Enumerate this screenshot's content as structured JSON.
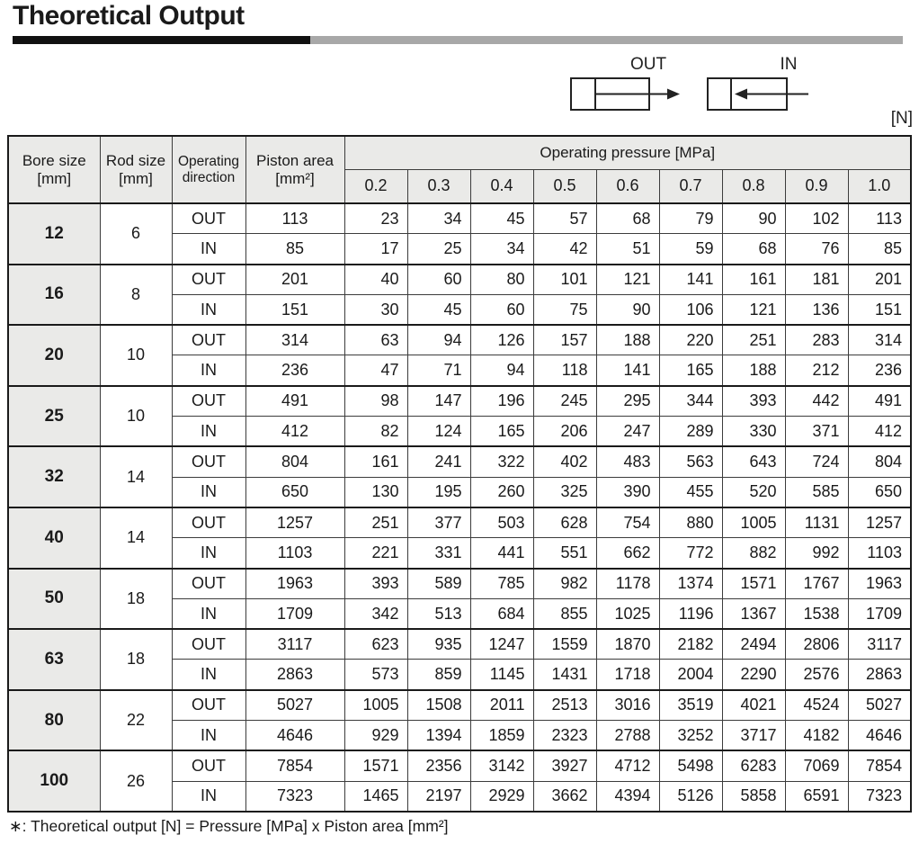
{
  "page": {
    "title": "Theoretical Output",
    "unit_label": "[N]",
    "footnote": "∗: Theoretical output [N] = Pressure [MPa] x Piston area [mm²]"
  },
  "colors": {
    "title_bar_black": "#111111",
    "title_bar_gray": "#a8a8a8",
    "header_bg": "#eaeae8"
  },
  "diagram": {
    "out_label": "OUT",
    "in_label": "IN"
  },
  "table": {
    "headers": {
      "bore": "Bore size",
      "bore_unit": "[mm]",
      "rod": "Rod size",
      "rod_unit": "[mm]",
      "direction_line1": "Operating",
      "direction_line2": "direction",
      "piston": "Piston area",
      "piston_unit": "[mm²]",
      "pressure_span": "Operating pressure [MPa]",
      "pressure_values": [
        "0.2",
        "0.3",
        "0.4",
        "0.5",
        "0.6",
        "0.7",
        "0.8",
        "0.9",
        "1.0"
      ]
    },
    "groups": [
      {
        "bore": "12",
        "rod": "6",
        "rows": [
          {
            "direction": "OUT",
            "piston_area": "113",
            "outputs": [
              "23",
              "34",
              "45",
              "57",
              "68",
              "79",
              "90",
              "102",
              "113"
            ]
          },
          {
            "direction": "IN",
            "piston_area": "85",
            "outputs": [
              "17",
              "25",
              "34",
              "42",
              "51",
              "59",
              "68",
              "76",
              "85"
            ]
          }
        ]
      },
      {
        "bore": "16",
        "rod": "8",
        "rows": [
          {
            "direction": "OUT",
            "piston_area": "201",
            "outputs": [
              "40",
              "60",
              "80",
              "101",
              "121",
              "141",
              "161",
              "181",
              "201"
            ]
          },
          {
            "direction": "IN",
            "piston_area": "151",
            "outputs": [
              "30",
              "45",
              "60",
              "75",
              "90",
              "106",
              "121",
              "136",
              "151"
            ]
          }
        ]
      },
      {
        "bore": "20",
        "rod": "10",
        "rows": [
          {
            "direction": "OUT",
            "piston_area": "314",
            "outputs": [
              "63",
              "94",
              "126",
              "157",
              "188",
              "220",
              "251",
              "283",
              "314"
            ]
          },
          {
            "direction": "IN",
            "piston_area": "236",
            "outputs": [
              "47",
              "71",
              "94",
              "118",
              "141",
              "165",
              "188",
              "212",
              "236"
            ]
          }
        ]
      },
      {
        "bore": "25",
        "rod": "10",
        "rows": [
          {
            "direction": "OUT",
            "piston_area": "491",
            "outputs": [
              "98",
              "147",
              "196",
              "245",
              "295",
              "344",
              "393",
              "442",
              "491"
            ]
          },
          {
            "direction": "IN",
            "piston_area": "412",
            "outputs": [
              "82",
              "124",
              "165",
              "206",
              "247",
              "289",
              "330",
              "371",
              "412"
            ]
          }
        ]
      },
      {
        "bore": "32",
        "rod": "14",
        "rows": [
          {
            "direction": "OUT",
            "piston_area": "804",
            "outputs": [
              "161",
              "241",
              "322",
              "402",
              "483",
              "563",
              "643",
              "724",
              "804"
            ]
          },
          {
            "direction": "IN",
            "piston_area": "650",
            "outputs": [
              "130",
              "195",
              "260",
              "325",
              "390",
              "455",
              "520",
              "585",
              "650"
            ]
          }
        ]
      },
      {
        "bore": "40",
        "rod": "14",
        "rows": [
          {
            "direction": "OUT",
            "piston_area": "1257",
            "outputs": [
              "251",
              "377",
              "503",
              "628",
              "754",
              "880",
              "1005",
              "1131",
              "1257"
            ]
          },
          {
            "direction": "IN",
            "piston_area": "1103",
            "outputs": [
              "221",
              "331",
              "441",
              "551",
              "662",
              "772",
              "882",
              "992",
              "1103"
            ]
          }
        ]
      },
      {
        "bore": "50",
        "rod": "18",
        "rows": [
          {
            "direction": "OUT",
            "piston_area": "1963",
            "outputs": [
              "393",
              "589",
              "785",
              "982",
              "1178",
              "1374",
              "1571",
              "1767",
              "1963"
            ]
          },
          {
            "direction": "IN",
            "piston_area": "1709",
            "outputs": [
              "342",
              "513",
              "684",
              "855",
              "1025",
              "1196",
              "1367",
              "1538",
              "1709"
            ]
          }
        ]
      },
      {
        "bore": "63",
        "rod": "18",
        "rows": [
          {
            "direction": "OUT",
            "piston_area": "3117",
            "outputs": [
              "623",
              "935",
              "1247",
              "1559",
              "1870",
              "2182",
              "2494",
              "2806",
              "3117"
            ]
          },
          {
            "direction": "IN",
            "piston_area": "2863",
            "outputs": [
              "573",
              "859",
              "1145",
              "1431",
              "1718",
              "2004",
              "2290",
              "2576",
              "2863"
            ]
          }
        ]
      },
      {
        "bore": "80",
        "rod": "22",
        "rows": [
          {
            "direction": "OUT",
            "piston_area": "5027",
            "outputs": [
              "1005",
              "1508",
              "2011",
              "2513",
              "3016",
              "3519",
              "4021",
              "4524",
              "5027"
            ]
          },
          {
            "direction": "IN",
            "piston_area": "4646",
            "outputs": [
              "929",
              "1394",
              "1859",
              "2323",
              "2788",
              "3252",
              "3717",
              "4182",
              "4646"
            ]
          }
        ]
      },
      {
        "bore": "100",
        "rod": "26",
        "rows": [
          {
            "direction": "OUT",
            "piston_area": "7854",
            "outputs": [
              "1571",
              "2356",
              "3142",
              "3927",
              "4712",
              "5498",
              "6283",
              "7069",
              "7854"
            ]
          },
          {
            "direction": "IN",
            "piston_area": "7323",
            "outputs": [
              "1465",
              "2197",
              "2929",
              "3662",
              "4394",
              "5126",
              "5858",
              "6591",
              "7323"
            ]
          }
        ]
      }
    ]
  }
}
